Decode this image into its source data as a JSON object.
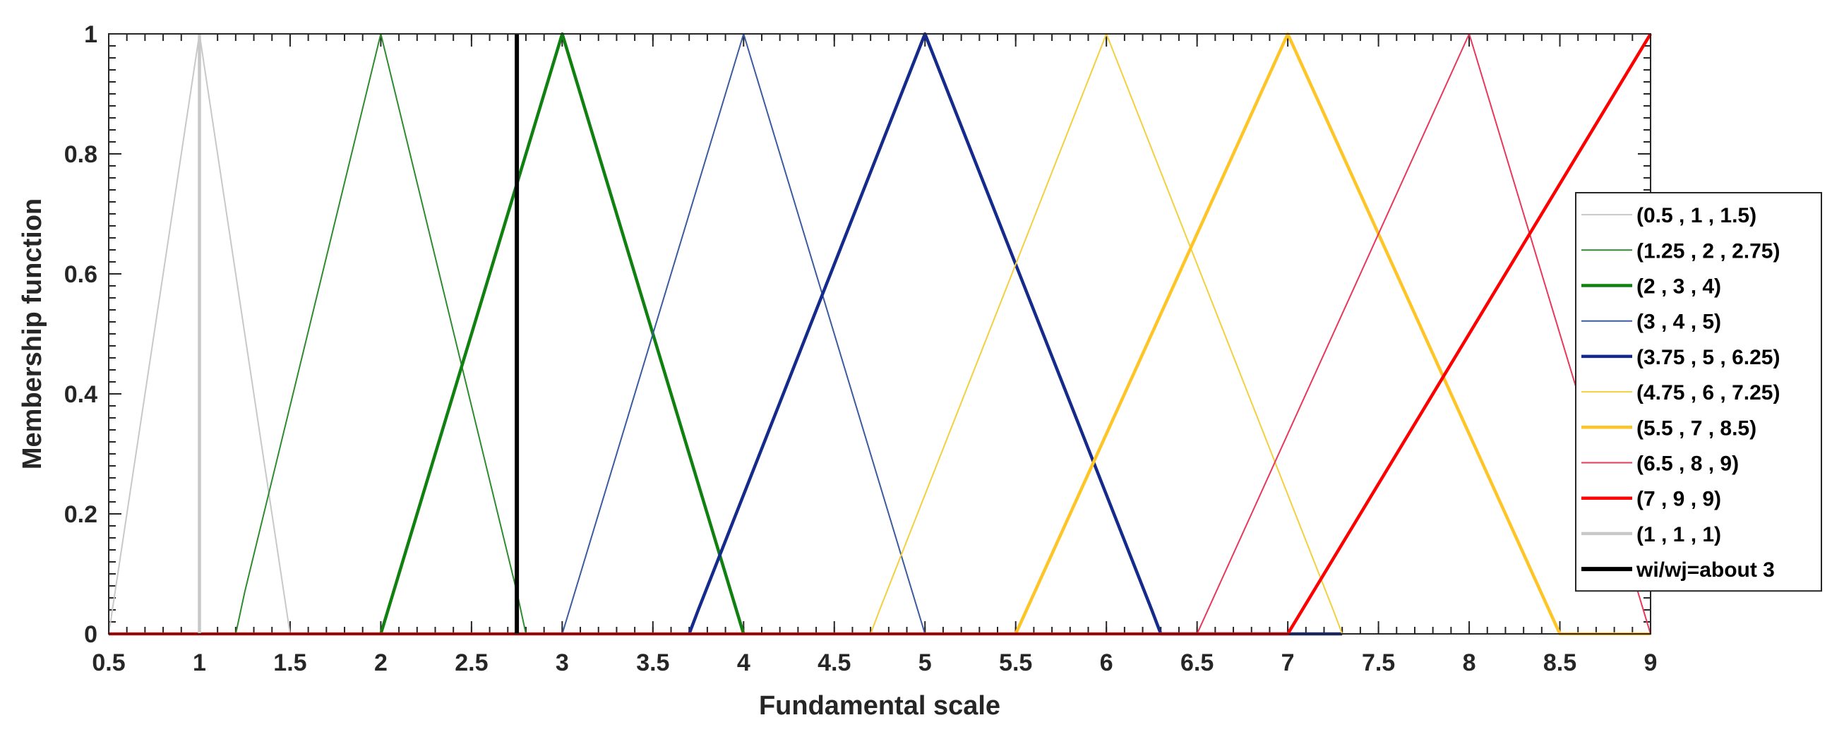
{
  "chart_data": {
    "type": "line",
    "xlabel": "Fundamental scale",
    "ylabel": "Membership function",
    "xlim": [
      0.5,
      9
    ],
    "ylim": [
      0,
      1
    ],
    "xticks": [
      "0.5",
      "1",
      "1.5",
      "2",
      "2.5",
      "3",
      "3.5",
      "4",
      "4.5",
      "5",
      "5.5",
      "6",
      "6.5",
      "7",
      "7.5",
      "8",
      "8.5",
      "9"
    ],
    "yticks": [
      "0",
      "0.2",
      "0.4",
      "0.6",
      "0.8",
      "1"
    ],
    "grid": false,
    "legend_position": "right",
    "series": [
      {
        "name": "(0.5 , 1 , 1.5)",
        "color": "#c8c8c8",
        "width": "thin",
        "points": [
          [
            0.5,
            0
          ],
          [
            1,
            1
          ],
          [
            1.5,
            0
          ]
        ]
      },
      {
        "name": "(1.25 , 2 , 2.75)",
        "color": "#2e8b2e",
        "width": "thin",
        "points": [
          [
            0.5,
            0
          ],
          [
            1.2,
            0
          ],
          [
            1.25,
            0.07
          ],
          [
            2,
            1
          ],
          [
            2.75,
            0.07
          ],
          [
            2.8,
            0
          ],
          [
            9,
            0
          ]
        ]
      },
      {
        "name": "(2 , 3 , 4)",
        "color": "#108010",
        "width": "thick",
        "points": [
          [
            2,
            0
          ],
          [
            3,
            1
          ],
          [
            4,
            0
          ]
        ]
      },
      {
        "name": "(3 , 4 , 5)",
        "color": "#3a5ba0",
        "width": "thin",
        "points": [
          [
            3,
            0
          ],
          [
            4,
            1
          ],
          [
            5,
            0
          ]
        ]
      },
      {
        "name": "(3.75 , 5 , 6.25)",
        "color": "#142b8c",
        "width": "thick",
        "points": [
          [
            3.7,
            0
          ],
          [
            3.75,
            0.04
          ],
          [
            5,
            1
          ],
          [
            6.25,
            0.04
          ],
          [
            6.3,
            0
          ],
          [
            7,
            0
          ],
          [
            7.3,
            0
          ]
        ]
      },
      {
        "name": "(4.75 , 6 , 7.25)",
        "color": "#f4d03f",
        "width": "thin",
        "points": [
          [
            4.7,
            0
          ],
          [
            4.75,
            0.04
          ],
          [
            6,
            1
          ],
          [
            7.25,
            0.04
          ],
          [
            7.3,
            0
          ],
          [
            9,
            0
          ]
        ]
      },
      {
        "name": "(5.5 , 7 , 8.5)",
        "color": "#ffc425",
        "width": "thick",
        "points": [
          [
            5.5,
            0
          ],
          [
            7,
            1
          ],
          [
            8.5,
            0
          ],
          [
            9,
            0
          ]
        ]
      },
      {
        "name": "(6.5 , 8 , 9)",
        "color": "#e8385a",
        "width": "thin",
        "points": [
          [
            6.5,
            0
          ],
          [
            8,
            1
          ],
          [
            9,
            0
          ]
        ]
      },
      {
        "name": "(7 , 9 , 9)",
        "color": "#ff0000",
        "width": "thick",
        "points": [
          [
            0.5,
            0
          ],
          [
            7,
            0
          ],
          [
            9,
            1
          ]
        ]
      },
      {
        "name": "(1 , 1 , 1)",
        "color": "#c8c8c8",
        "width": "thick",
        "points": [
          [
            1,
            0
          ],
          [
            1,
            1
          ]
        ]
      },
      {
        "name": "wi/wj=about 3",
        "color": "#000000",
        "width": "thickest",
        "points": [
          [
            2.75,
            0
          ],
          [
            2.75,
            1
          ]
        ]
      }
    ]
  }
}
